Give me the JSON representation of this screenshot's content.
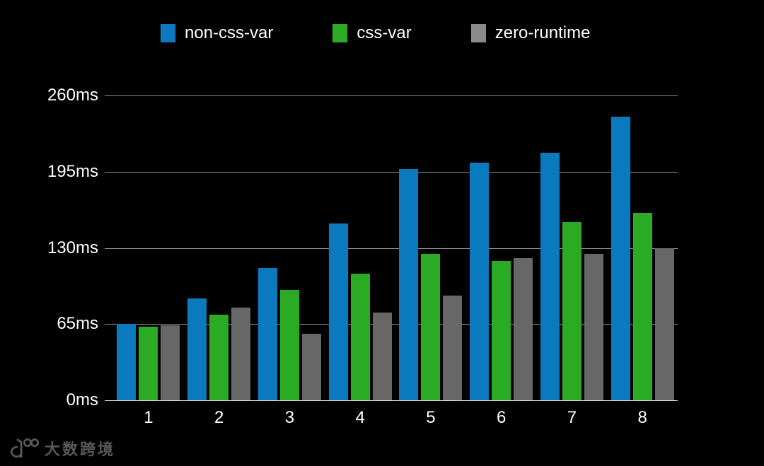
{
  "legend": {
    "items": [
      {
        "label": "non-css-var",
        "color": "#0b79bd"
      },
      {
        "label": "css-var",
        "color": "#2baa23"
      },
      {
        "label": "zero-runtime",
        "color": "#8a8a8a"
      }
    ]
  },
  "chart_data": {
    "type": "bar",
    "title": "",
    "xlabel": "",
    "ylabel": "",
    "unit": "ms",
    "categories": [
      "1",
      "2",
      "3",
      "4",
      "5",
      "6",
      "7",
      "8"
    ],
    "series": [
      {
        "name": "non-css-var",
        "color": "#0b79bd",
        "values": [
          65,
          87,
          113,
          151,
          197,
          203,
          211,
          242
        ]
      },
      {
        "name": "css-var",
        "color": "#2baa23",
        "values": [
          63,
          73,
          94,
          108,
          125,
          119,
          152,
          160
        ]
      },
      {
        "name": "zero-runtime",
        "color": "#676767",
        "values": [
          64,
          79,
          57,
          75,
          89,
          121,
          125,
          130
        ]
      }
    ],
    "ylim": [
      0,
      260
    ],
    "ytick_values": [
      260,
      195,
      130,
      65,
      0
    ],
    "yticks": [
      "260ms",
      "195ms",
      "130ms",
      "65ms",
      "0ms"
    ],
    "grid": true,
    "legend_position": "top",
    "background": "#000000"
  },
  "watermark": {
    "icon": "k100-logo-icon",
    "text": "大数跨境",
    "color": "#585858"
  }
}
